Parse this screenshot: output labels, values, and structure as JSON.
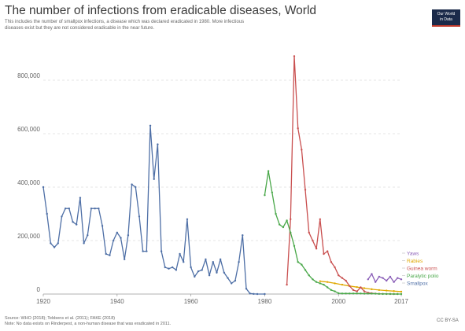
{
  "header": {
    "title": "The number of infections from eradicable diseases, World",
    "subtitle_line1": "This includes the number of smallpox infections, a disease which was declared eradicated in 1980. More infectious",
    "subtitle_line2": "diseases exist but they are not considered eradicable in the near future."
  },
  "logo": {
    "line1": "Our World",
    "line2": "in Data"
  },
  "footer": {
    "source": "Source: WHO (2018); Tebbens et al. (2011); FAKE (2018)",
    "note": "Note: No data exists on Rinderpest, a non-human disease that was eradicated in 2011."
  },
  "license": "CC BY-SA",
  "chart_data": {
    "type": "line",
    "title": "The number of infections from eradicable diseases, World",
    "xlim": [
      1920,
      2017
    ],
    "ylim": [
      0,
      900000
    ],
    "x_ticks": [
      1920,
      1940,
      1960,
      1980,
      2000,
      2017
    ],
    "x_tick_labels": [
      "1920",
      "1940",
      "1960",
      "1980",
      "2000",
      "2017"
    ],
    "y_ticks": [
      0,
      200000,
      400000,
      600000,
      800000
    ],
    "y_tick_labels": [
      "0",
      "200,000",
      "400,000",
      "600,000",
      "800,000"
    ],
    "grid": "horizontal",
    "legend_position": "right",
    "series": [
      {
        "name": "Yaws",
        "color": "#8b5fb8",
        "x": [
          2008,
          2009,
          2010,
          2011,
          2012,
          2013,
          2014,
          2015,
          2016,
          2017
        ],
        "y": [
          55000,
          75000,
          45000,
          65000,
          60000,
          50000,
          65000,
          45000,
          60000,
          55000
        ]
      },
      {
        "name": "Rabies",
        "color": "#e0a800",
        "x": [
          1995,
          1997,
          1999,
          2001,
          2003,
          2005,
          2007,
          2009,
          2011,
          2013,
          2015,
          2017
        ],
        "y": [
          48000,
          45000,
          40000,
          35000,
          30000,
          26000,
          22000,
          18000,
          15000,
          13000,
          11000,
          9000
        ]
      },
      {
        "name": "Guinea worm",
        "color": "#c94f4f",
        "x": [
          1986,
          1987,
          1988,
          1989,
          1990,
          1991,
          1992,
          1993,
          1994,
          1995,
          1996,
          1997,
          1998,
          1999,
          2000,
          2001,
          2002,
          2003,
          2004,
          2005,
          2006,
          2007,
          2008,
          2009,
          2010,
          2011,
          2012,
          2013,
          2014,
          2015,
          2016
        ],
        "y": [
          35000,
          280000,
          890000,
          620000,
          540000,
          390000,
          230000,
          200000,
          170000,
          280000,
          150000,
          160000,
          120000,
          100000,
          70000,
          60000,
          50000,
          30000,
          15000,
          10000,
          25000,
          10000,
          5000,
          3000,
          1800,
          1000,
          500,
          150,
          130,
          25,
          30
        ]
      },
      {
        "name": "Paralytic polio",
        "color": "#4aa84a",
        "x": [
          1980,
          1981,
          1982,
          1983,
          1984,
          1985,
          1986,
          1987,
          1988,
          1989,
          1990,
          1991,
          1992,
          1993,
          1994,
          1995,
          1996,
          1997,
          1998,
          1999,
          2000,
          2001,
          2002,
          2003,
          2004,
          2005,
          2006,
          2007,
          2008,
          2009,
          2010,
          2011,
          2012,
          2013,
          2014,
          2015,
          2016,
          2017
        ],
        "y": [
          370000,
          460000,
          380000,
          300000,
          260000,
          250000,
          275000,
          230000,
          180000,
          120000,
          110000,
          90000,
          70000,
          55000,
          45000,
          40000,
          35000,
          25000,
          15000,
          10000,
          3000,
          2000,
          2000,
          2000,
          2000,
          2000,
          2000,
          1500,
          1600,
          1600,
          1400,
          700,
          250,
          400,
          360,
          100,
          40,
          20
        ]
      },
      {
        "name": "Smallpox",
        "color": "#4e6fa6",
        "x": [
          1920,
          1921,
          1922,
          1923,
          1924,
          1925,
          1926,
          1927,
          1928,
          1929,
          1930,
          1931,
          1932,
          1933,
          1934,
          1935,
          1936,
          1937,
          1938,
          1939,
          1940,
          1941,
          1942,
          1943,
          1944,
          1945,
          1946,
          1947,
          1948,
          1949,
          1950,
          1951,
          1952,
          1953,
          1954,
          1955,
          1956,
          1957,
          1958,
          1959,
          1960,
          1961,
          1962,
          1963,
          1964,
          1965,
          1966,
          1967,
          1968,
          1969,
          1970,
          1971,
          1972,
          1973,
          1974,
          1975,
          1976,
          1977,
          1978,
          1980
        ],
        "y": [
          400000,
          300000,
          190000,
          175000,
          190000,
          290000,
          320000,
          320000,
          270000,
          260000,
          360000,
          190000,
          220000,
          320000,
          320000,
          320000,
          255000,
          150000,
          145000,
          200000,
          230000,
          210000,
          130000,
          220000,
          410000,
          400000,
          290000,
          160000,
          160000,
          630000,
          430000,
          560000,
          160000,
          100000,
          95000,
          100000,
          90000,
          150000,
          120000,
          280000,
          100000,
          65000,
          85000,
          90000,
          130000,
          70000,
          120000,
          80000,
          130000,
          80000,
          60000,
          40000,
          50000,
          120000,
          220000,
          20000,
          2000,
          500,
          0,
          0
        ]
      }
    ]
  }
}
